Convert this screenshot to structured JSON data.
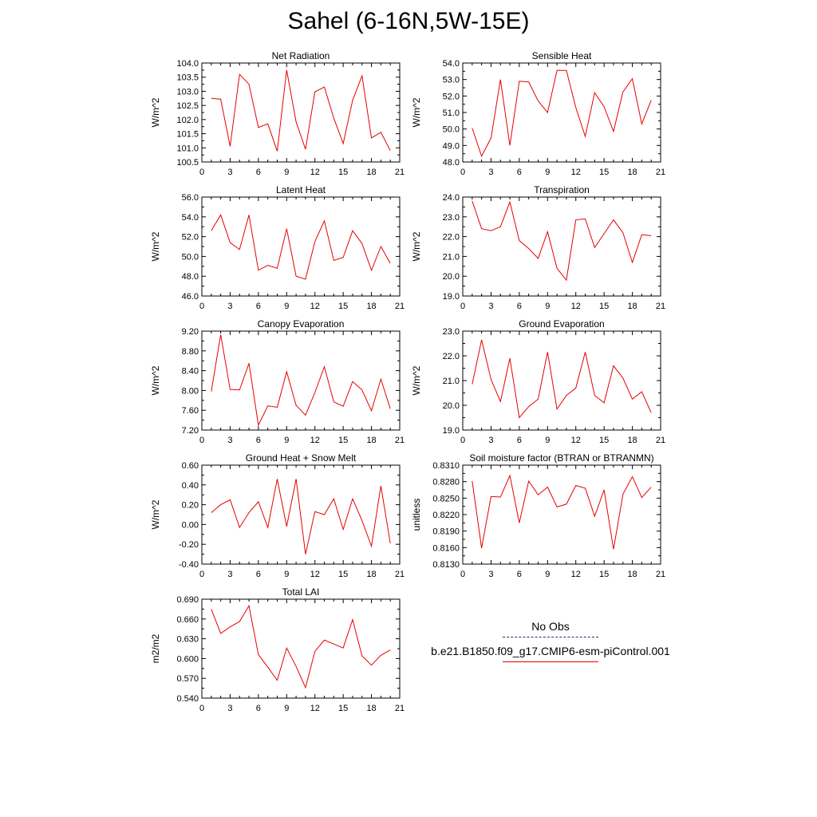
{
  "title": "Sahel (6-16N,5W-15E)",
  "legend": {
    "obs_label": "No Obs",
    "model_label": "b.e21.B1850.f09_g17.CMIP6-esm-piControl.001"
  },
  "colors": {
    "model_line": "#e60000",
    "obs_line": "#2b2b6e",
    "axes": "#000000"
  },
  "chart_data": [
    {
      "type": "line",
      "title": "Net Radiation",
      "ylabel": "W/m^2",
      "xlim": [
        0,
        21
      ],
      "ylim": [
        100.5,
        104.0
      ],
      "xticks": [
        "0",
        "3",
        "6",
        "9",
        "12",
        "15",
        "18",
        "21"
      ],
      "yticks": [
        "100.5",
        "101.0",
        "101.5",
        "102.0",
        "102.5",
        "103.0",
        "103.5",
        "104.0"
      ],
      "x": [
        1,
        2,
        3,
        4,
        5,
        6,
        7,
        8,
        9,
        10,
        11,
        12,
        13,
        14,
        15,
        16,
        17,
        18,
        19,
        20
      ],
      "series": [
        {
          "name": "b.e21.B1850.f09_g17.CMIP6-esm-piControl.001",
          "values": [
            102.75,
            102.72,
            101.05,
            103.6,
            103.25,
            101.72,
            101.85,
            100.88,
            103.75,
            101.92,
            100.95,
            102.98,
            103.15,
            102.05,
            101.15,
            102.68,
            103.55,
            101.35,
            101.55,
            100.9
          ]
        }
      ]
    },
    {
      "type": "line",
      "title": "Sensible Heat",
      "ylabel": "W/m^2",
      "xlim": [
        0,
        21
      ],
      "ylim": [
        48.0,
        54.0
      ],
      "xticks": [
        "0",
        "3",
        "6",
        "9",
        "12",
        "15",
        "18",
        "21"
      ],
      "yticks": [
        "48.0",
        "49.0",
        "50.0",
        "51.0",
        "52.0",
        "53.0",
        "54.0"
      ],
      "x": [
        1,
        2,
        3,
        4,
        5,
        6,
        7,
        8,
        9,
        10,
        11,
        12,
        13,
        14,
        15,
        16,
        17,
        18,
        19,
        20
      ],
      "series": [
        {
          "name": "b.e21.B1850.f09_g17.CMIP6-esm-piControl.001",
          "values": [
            50.05,
            48.35,
            49.45,
            53.0,
            49.0,
            52.9,
            52.85,
            51.7,
            51.0,
            53.55,
            53.55,
            51.3,
            49.55,
            52.2,
            51.35,
            49.85,
            52.25,
            53.05,
            50.3,
            51.75
          ]
        }
      ]
    },
    {
      "type": "line",
      "title": "Latent Heat",
      "ylabel": "W/m^2",
      "xlim": [
        0,
        21
      ],
      "ylim": [
        46.0,
        56.0
      ],
      "xticks": [
        "0",
        "3",
        "6",
        "9",
        "12",
        "15",
        "18",
        "21"
      ],
      "yticks": [
        "46.0",
        "48.0",
        "50.0",
        "52.0",
        "54.0",
        "56.0"
      ],
      "x": [
        1,
        2,
        3,
        4,
        5,
        6,
        7,
        8,
        9,
        10,
        11,
        12,
        13,
        14,
        15,
        16,
        17,
        18,
        19,
        20
      ],
      "series": [
        {
          "name": "b.e21.B1850.f09_g17.CMIP6-esm-piControl.001",
          "values": [
            52.6,
            54.2,
            51.4,
            50.7,
            54.2,
            48.6,
            49.1,
            48.8,
            52.8,
            48.0,
            47.7,
            51.5,
            53.6,
            49.6,
            49.9,
            52.6,
            51.3,
            48.6,
            51.0,
            49.3
          ]
        }
      ]
    },
    {
      "type": "line",
      "title": "Transpiration",
      "ylabel": "W/m^2",
      "xlim": [
        0,
        21
      ],
      "ylim": [
        19.0,
        24.0
      ],
      "xticks": [
        "0",
        "3",
        "6",
        "9",
        "12",
        "15",
        "18",
        "21"
      ],
      "yticks": [
        "19.0",
        "20.0",
        "21.0",
        "22.0",
        "23.0",
        "24.0"
      ],
      "x": [
        1,
        2,
        3,
        4,
        5,
        6,
        7,
        8,
        9,
        10,
        11,
        12,
        13,
        14,
        15,
        16,
        17,
        18,
        19,
        20
      ],
      "series": [
        {
          "name": "b.e21.B1850.f09_g17.CMIP6-esm-piControl.001",
          "values": [
            23.8,
            22.4,
            22.3,
            22.5,
            23.75,
            21.8,
            21.4,
            20.9,
            22.25,
            20.4,
            19.8,
            22.85,
            22.9,
            21.45,
            22.15,
            22.85,
            22.2,
            20.7,
            22.1,
            22.05
          ]
        }
      ]
    },
    {
      "type": "line",
      "title": "Canopy Evaporation",
      "ylabel": "W/m^2",
      "xlim": [
        0,
        21
      ],
      "ylim": [
        7.2,
        9.2
      ],
      "xticks": [
        "0",
        "3",
        "6",
        "9",
        "12",
        "15",
        "18",
        "21"
      ],
      "yticks": [
        "7.20",
        "7.60",
        "8.00",
        "8.40",
        "8.80",
        "9.20"
      ],
      "x": [
        1,
        2,
        3,
        4,
        5,
        6,
        7,
        8,
        9,
        10,
        11,
        12,
        13,
        14,
        15,
        16,
        17,
        18,
        19,
        20
      ],
      "series": [
        {
          "name": "b.e21.B1850.f09_g17.CMIP6-esm-piControl.001",
          "values": [
            7.98,
            9.13,
            8.02,
            8.01,
            8.55,
            7.3,
            7.69,
            7.66,
            8.38,
            7.7,
            7.5,
            7.96,
            8.48,
            7.77,
            7.68,
            8.18,
            8.01,
            7.59,
            8.23,
            7.63
          ]
        }
      ]
    },
    {
      "type": "line",
      "title": "Ground Evaporation",
      "ylabel": "W/m^2",
      "xlim": [
        0,
        21
      ],
      "ylim": [
        19.0,
        23.0
      ],
      "xticks": [
        "0",
        "3",
        "6",
        "9",
        "12",
        "15",
        "18",
        "21"
      ],
      "yticks": [
        "19.0",
        "20.0",
        "21.0",
        "22.0",
        "23.0"
      ],
      "x": [
        1,
        2,
        3,
        4,
        5,
        6,
        7,
        8,
        9,
        10,
        11,
        12,
        13,
        14,
        15,
        16,
        17,
        18,
        19,
        20
      ],
      "series": [
        {
          "name": "b.e21.B1850.f09_g17.CMIP6-esm-piControl.001",
          "values": [
            20.85,
            22.65,
            21.05,
            20.15,
            21.9,
            19.5,
            19.95,
            20.25,
            22.15,
            19.85,
            20.4,
            20.7,
            22.15,
            20.4,
            20.1,
            21.6,
            21.1,
            20.25,
            20.55,
            19.7
          ]
        }
      ]
    },
    {
      "type": "line",
      "title": "Ground Heat + Snow Melt",
      "ylabel": "W/m^2",
      "xlim": [
        0,
        21
      ],
      "ylim": [
        -0.4,
        0.6
      ],
      "xticks": [
        "0",
        "3",
        "6",
        "9",
        "12",
        "15",
        "18",
        "21"
      ],
      "yticks": [
        "-0.40",
        "-0.20",
        "0.00",
        "0.20",
        "0.40",
        "0.60"
      ],
      "x": [
        1,
        2,
        3,
        4,
        5,
        6,
        7,
        8,
        9,
        10,
        11,
        12,
        13,
        14,
        15,
        16,
        17,
        18,
        19,
        20
      ],
      "series": [
        {
          "name": "b.e21.B1850.f09_g17.CMIP6-esm-piControl.001",
          "values": [
            0.12,
            0.2,
            0.25,
            -0.03,
            0.12,
            0.23,
            -0.03,
            0.46,
            -0.02,
            0.46,
            -0.3,
            0.13,
            0.1,
            0.26,
            -0.05,
            0.26,
            0.04,
            -0.22,
            0.39,
            -0.19
          ]
        }
      ]
    },
    {
      "type": "line",
      "title": "Soil moisture factor (BTRAN or BTRANMN)",
      "ylabel": "unitless",
      "xlim": [
        0,
        21
      ],
      "ylim": [
        0.813,
        0.831
      ],
      "xticks": [
        "0",
        "3",
        "6",
        "9",
        "12",
        "15",
        "18",
        "21"
      ],
      "yticks": [
        "0.8130",
        "0.8160",
        "0.8190",
        "0.8220",
        "0.8250",
        "0.8280",
        "0.8310"
      ],
      "x": [
        1,
        2,
        3,
        4,
        5,
        6,
        7,
        8,
        9,
        10,
        11,
        12,
        13,
        14,
        15,
        16,
        17,
        18,
        19,
        20
      ],
      "series": [
        {
          "name": "b.e21.B1850.f09_g17.CMIP6-esm-piControl.001",
          "values": [
            0.8281,
            0.8159,
            0.8253,
            0.8252,
            0.8291,
            0.8205,
            0.8281,
            0.8256,
            0.827,
            0.8234,
            0.8239,
            0.8273,
            0.8268,
            0.8217,
            0.8265,
            0.8157,
            0.8257,
            0.8289,
            0.8251,
            0.827
          ]
        }
      ]
    },
    {
      "type": "line",
      "title": "Total LAI",
      "ylabel": "m2/m2",
      "xlim": [
        0,
        21
      ],
      "ylim": [
        0.54,
        0.69
      ],
      "xticks": [
        "0",
        "3",
        "6",
        "9",
        "12",
        "15",
        "18",
        "21"
      ],
      "yticks": [
        "0.540",
        "0.570",
        "0.600",
        "0.630",
        "0.660",
        "0.690"
      ],
      "x": [
        1,
        2,
        3,
        4,
        5,
        6,
        7,
        8,
        9,
        10,
        11,
        12,
        13,
        14,
        15,
        16,
        17,
        18,
        19,
        20
      ],
      "series": [
        {
          "name": "b.e21.B1850.f09_g17.CMIP6-esm-piControl.001",
          "values": [
            0.675,
            0.638,
            0.648,
            0.656,
            0.68,
            0.606,
            0.587,
            0.567,
            0.616,
            0.588,
            0.556,
            0.611,
            0.628,
            0.622,
            0.616,
            0.659,
            0.604,
            0.59,
            0.605,
            0.613
          ]
        }
      ]
    }
  ]
}
